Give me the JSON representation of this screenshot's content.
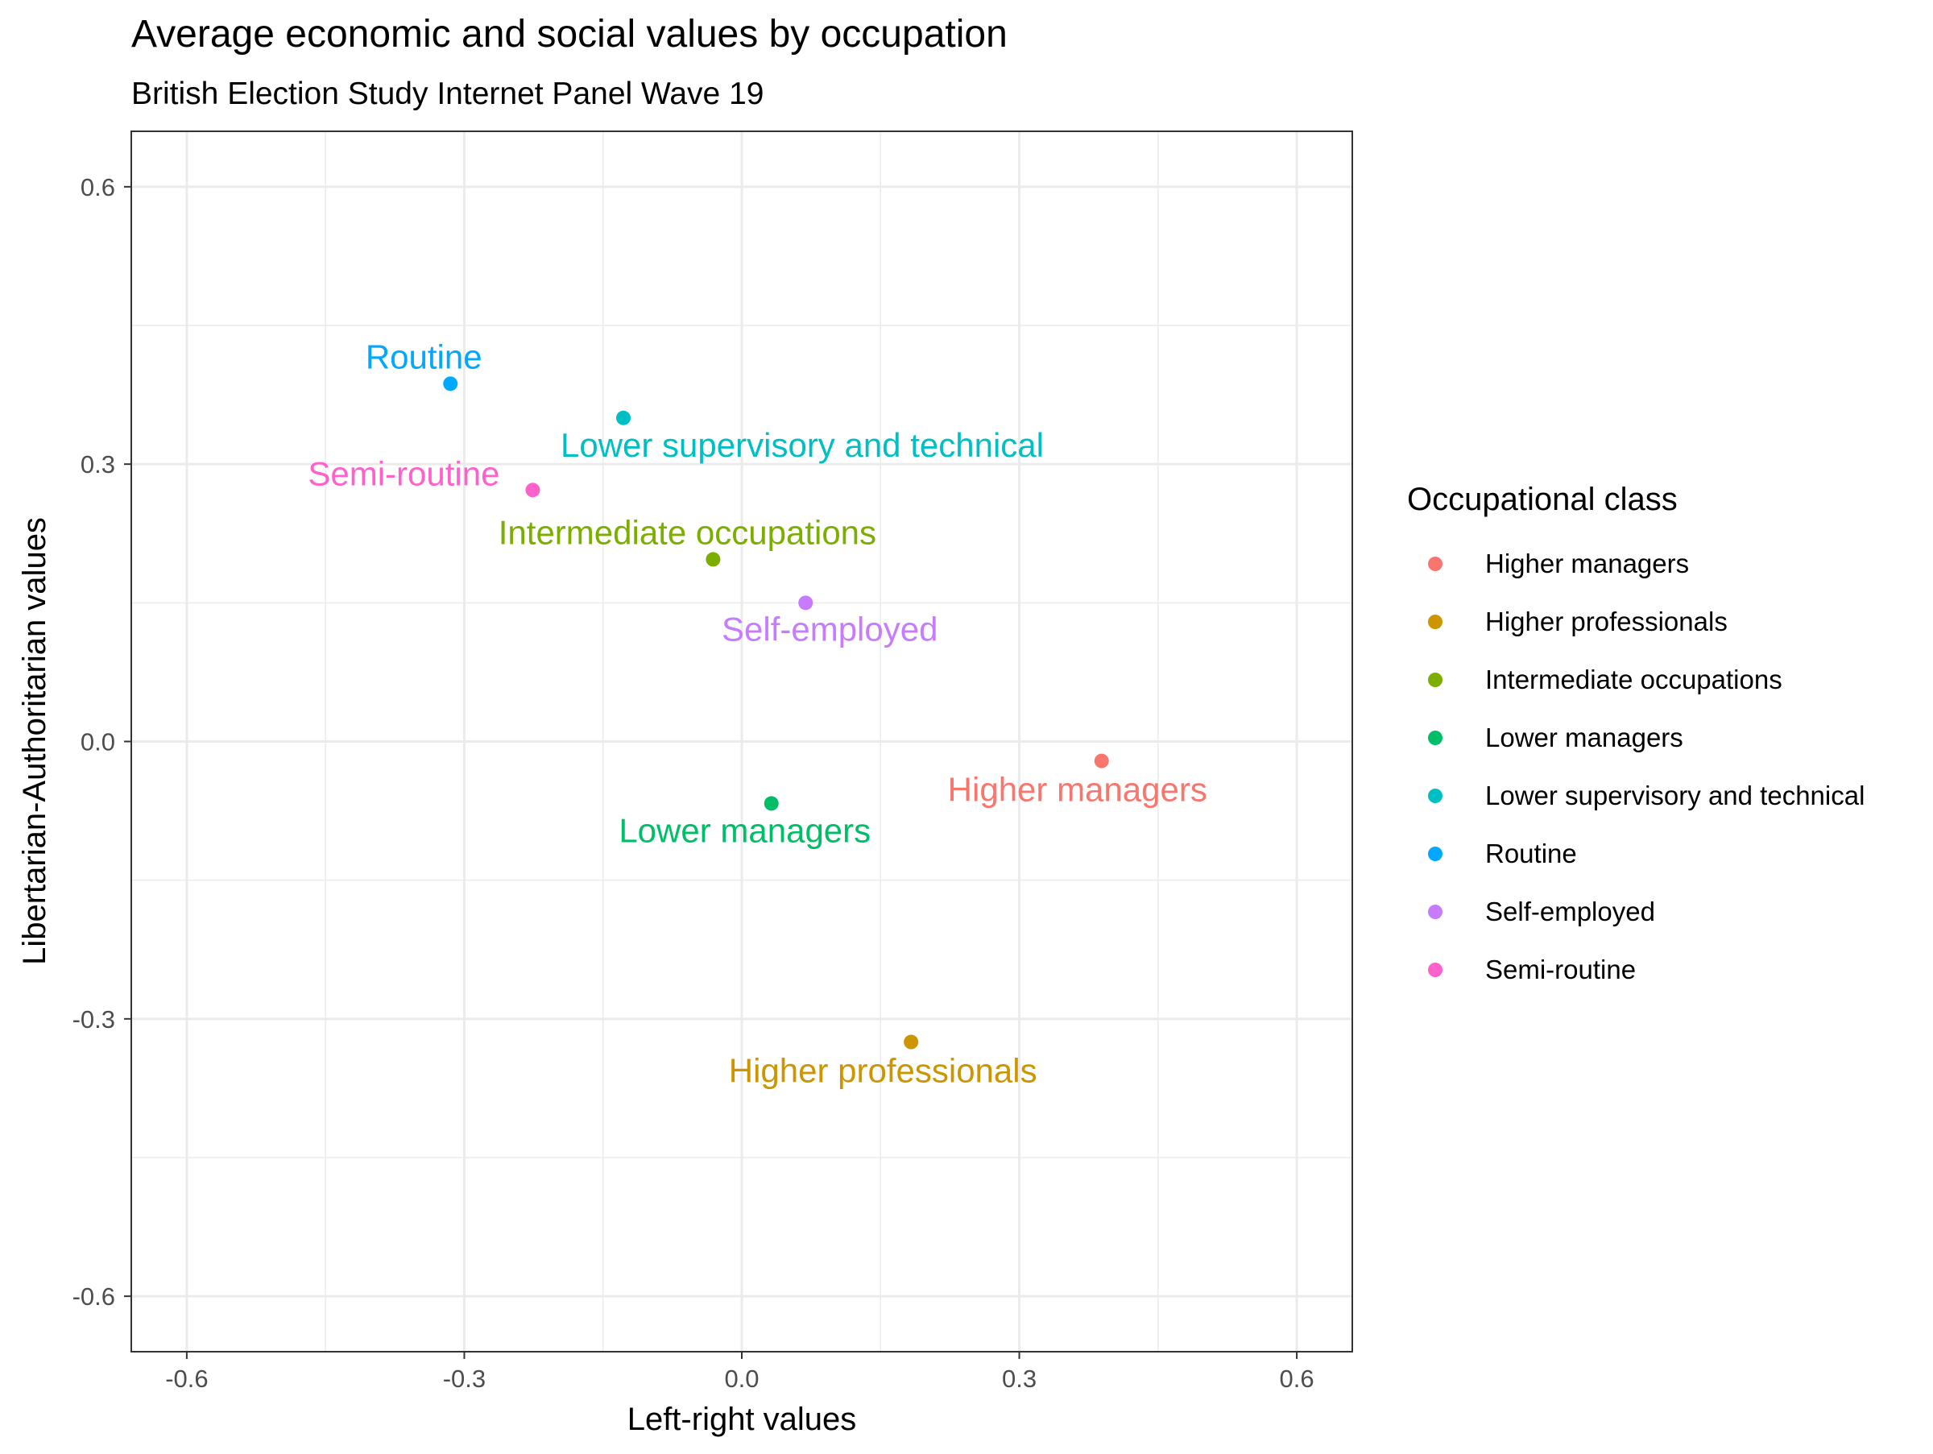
{
  "chart_data": {
    "type": "scatter",
    "title": "Average economic and social values by occupation",
    "subtitle": "British Election Study Internet Panel Wave 19",
    "xlabel": "Left-right values",
    "ylabel": "Libertarian-Authoritarian values",
    "xlim": [
      -0.66,
      0.66
    ],
    "ylim": [
      -0.66,
      0.66
    ],
    "x_ticks": [
      -0.6,
      -0.3,
      0.0,
      0.3,
      0.6
    ],
    "x_tick_labels": [
      "-0.6",
      "-0.3",
      "0.0",
      "0.3",
      "0.6"
    ],
    "y_ticks": [
      -0.6,
      -0.3,
      0.0,
      0.3,
      0.6
    ],
    "y_tick_labels": [
      "-0.6",
      "-0.3",
      "0.0",
      "0.3",
      "0.6"
    ],
    "grid": true,
    "legend": {
      "title": "Occupational class",
      "position": "right"
    },
    "series": [
      {
        "name": "Higher managers",
        "x": 0.389,
        "y": -0.021,
        "color": "#F8766D"
      },
      {
        "name": "Higher professionals",
        "x": 0.183,
        "y": -0.325,
        "color": "#CD9600"
      },
      {
        "name": "Intermediate occupations",
        "x": -0.031,
        "y": 0.197,
        "color": "#7CAE00"
      },
      {
        "name": "Lower managers",
        "x": 0.032,
        "y": -0.067,
        "color": "#00BE67"
      },
      {
        "name": "Lower supervisory and technical",
        "x": -0.128,
        "y": 0.35,
        "color": "#00BFC4"
      },
      {
        "name": "Routine",
        "x": -0.315,
        "y": 0.387,
        "color": "#00A9FF"
      },
      {
        "name": "Self-employed",
        "x": 0.069,
        "y": 0.15,
        "color": "#C77CFF"
      },
      {
        "name": "Semi-routine",
        "x": -0.226,
        "y": 0.272,
        "color": "#FF61CC"
      }
    ]
  }
}
